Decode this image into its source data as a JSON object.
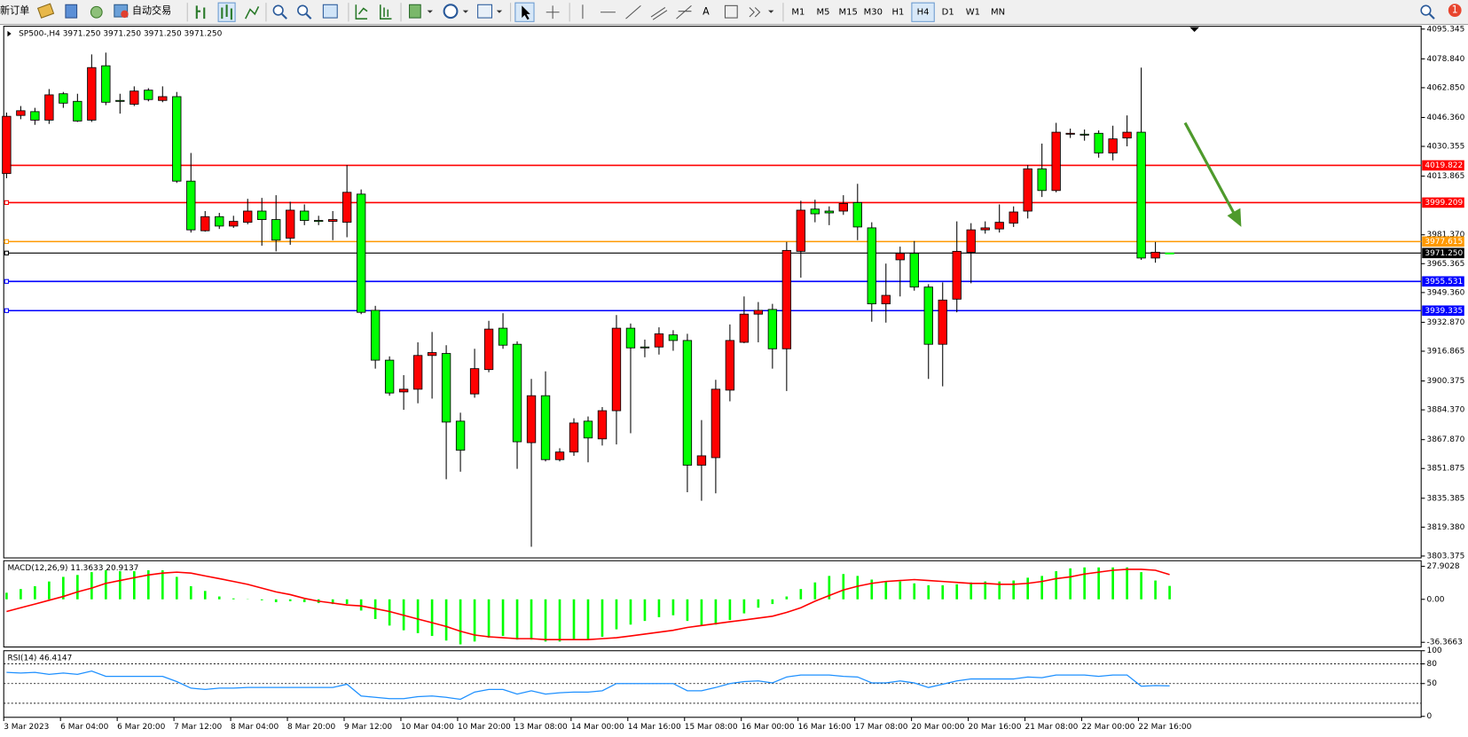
{
  "toolbar": {
    "new_order": "新订单",
    "auto_trading": "自动交易",
    "text_tool": "A",
    "timeframes": [
      {
        "label": "M1"
      },
      {
        "label": "M5"
      },
      {
        "label": "M15"
      },
      {
        "label": "M30"
      },
      {
        "label": "H1"
      },
      {
        "label": "H4",
        "active": true
      },
      {
        "label": "D1"
      },
      {
        "label": "W1"
      },
      {
        "label": "MN"
      }
    ],
    "notifications": "1"
  },
  "chart_data": [
    {
      "type": "candlestick",
      "title": "SP500-,H4  3971.250 3971.250 3971.250 3971.250",
      "x": [
        "3 Mar 2023",
        null,
        null,
        null,
        "6 Mar 04:00",
        null,
        null,
        null,
        "6 Mar 20:00",
        null,
        null,
        null,
        "7 Mar 12:00",
        null,
        null,
        null,
        "8 Mar 04:00",
        null,
        null,
        null,
        "8 Mar 20:00",
        null,
        null,
        null,
        "9 Mar 12:00",
        null,
        null,
        null,
        "10 Mar 04:00",
        null,
        null,
        null,
        "10 Mar 20:00",
        null,
        null,
        null,
        "13 Mar 08:00",
        null,
        null,
        null,
        "14 Mar 00:00",
        null,
        null,
        null,
        "14 Mar 16:00",
        null,
        null,
        null,
        "15 Mar 08:00",
        null,
        null,
        null,
        "16 Mar 00:00",
        null,
        null,
        null,
        "16 Mar 16:00",
        null,
        null,
        null,
        "17 Mar 08:00",
        null,
        null,
        null,
        "20 Mar 00:00",
        null,
        null,
        null,
        "20 Mar 16:00",
        null,
        null,
        null,
        "21 Mar 08:00",
        null,
        null,
        null,
        "22 Mar 00:00",
        null,
        null,
        null,
        "22 Mar 16:00",
        null,
        null
      ],
      "open": [
        4015.3,
        4047.5,
        4049.6,
        4044.9,
        4059.5,
        4055.3,
        4044.9,
        4075.0,
        4055.8,
        4053.7,
        4061.5,
        4055.8,
        4057.9,
        4011.1,
        3983.6,
        3991.4,
        3986.2,
        3988.3,
        3994.5,
        3989.8,
        3979.5,
        3994.5,
        3989.3,
        3988.8,
        3988.3,
        4003.9,
        3939.5,
        3911.9,
        3894.3,
        3895.8,
        3914.5,
        3915.6,
        3878.1,
        3893.2,
        3906.7,
        3929.6,
        3920.7,
        3866.2,
        3892.2,
        3856.8,
        3861.0,
        3878.1,
        3868.3,
        3883.9,
        3929.6,
        3919.2,
        3919.2,
        3925.9,
        3922.8,
        3853.7,
        3857.9,
        3895.3,
        3921.8,
        3937.4,
        3940.0,
        3918.2,
        3972.2,
        3995.6,
        3994.5,
        3994.5,
        3999.2,
        3985.2,
        3943.1,
        3967.5,
        3971.1,
        3952.4,
        3920.7,
        3945.7,
        3971.7,
        3984.1,
        3984.6,
        3987.8,
        3994.5,
        4017.9,
        4005.9,
        4037.1,
        4037.1,
        4037.6,
        4026.7,
        4035.0,
        4038.2,
        3968.5,
        3971.25
      ],
      "high": [
        4049.1,
        4052.7,
        4051.7,
        4062.1,
        4060.5,
        4059.5,
        4081.3,
        4082.3,
        4059.5,
        4063.6,
        4062.6,
        4063.6,
        4060.5,
        4026.7,
        3994.5,
        3993.5,
        3991.9,
        4001.3,
        4001.8,
        4003.3,
        3999.7,
        3998.2,
        3991.9,
        3994.5,
        4020.0,
        4006.5,
        3942.0,
        3914.0,
        3903.6,
        3921.8,
        3927.5,
        3920.2,
        3882.8,
        3918.2,
        3933.7,
        3937.9,
        3922.3,
        3901.5,
        3905.7,
        3863.1,
        3879.7,
        3880.7,
        3885.9,
        3936.9,
        3932.2,
        3923.3,
        3930.1,
        3928.5,
        3926.5,
        3878.7,
        3901.0,
        3931.7,
        3947.2,
        3944.1,
        3943.1,
        3977.4,
        4000.2,
        4000.8,
        3997.1,
        4003.3,
        4009.6,
        3988.3,
        3965.4,
        3974.8,
        3977.9,
        3954.0,
        3955.0,
        3988.8,
        3987.8,
        3988.8,
        3998.2,
        3997.1,
        4020.0,
        4031.9,
        4043.4,
        4040.2,
        4039.7,
        4039.2,
        4041.8,
        4047.5,
        4074.0,
        3977.4,
        3971.25
      ],
      "low": [
        4012.7,
        4045.4,
        4042.3,
        4042.8,
        4051.7,
        4043.9,
        4043.9,
        4053.2,
        4048.5,
        4052.7,
        4055.3,
        4054.8,
        4010.1,
        3982.6,
        3983.1,
        3984.6,
        3985.2,
        3987.2,
        3975.3,
        3972.2,
        3975.8,
        3986.7,
        3986.7,
        3978.4,
        3980.0,
        3937.4,
        3907.2,
        3892.2,
        3884.4,
        3888.0,
        3890.6,
        3845.9,
        3850.1,
        3891.1,
        3905.2,
        3918.2,
        3851.7,
        3808.5,
        3855.8,
        3855.8,
        3858.9,
        3855.3,
        3864.6,
        3865.2,
        3871.4,
        3913.5,
        3915.0,
        3917.1,
        3838.7,
        3834.0,
        3838.1,
        3889.1,
        3921.3,
        3921.8,
        3907.2,
        3894.8,
        3957.6,
        3988.3,
        3986.7,
        3992.4,
        3978.4,
        3933.2,
        3932.7,
        3947.2,
        3950.4,
        3901.5,
        3897.4,
        3938.4,
        3954.5,
        3982.0,
        3982.6,
        3985.7,
        3990.4,
        4002.3,
        4004.9,
        4035.0,
        4033.5,
        4024.1,
        4022.6,
        4030.4,
        3967.5,
        3965.9,
        3971.25
      ],
      "close": [
        4047.0,
        4050.1,
        4044.9,
        4058.9,
        4054.3,
        4044.4,
        4074.0,
        4054.8,
        4055.3,
        4061.0,
        4056.3,
        4057.9,
        4011.1,
        3984.1,
        3991.4,
        3986.2,
        3988.8,
        3994.5,
        3989.8,
        3978.4,
        3995.0,
        3989.3,
        3988.8,
        3989.8,
        4004.9,
        3938.4,
        3911.9,
        3893.7,
        3895.8,
        3914.5,
        3916.1,
        3877.6,
        3862.0,
        3907.2,
        3929.1,
        3920.2,
        3866.7,
        3892.2,
        3856.8,
        3861.0,
        3877.1,
        3868.8,
        3883.9,
        3929.6,
        3918.7,
        3918.7,
        3926.5,
        3922.8,
        3853.7,
        3858.9,
        3895.8,
        3922.8,
        3937.4,
        3939.5,
        3918.2,
        3972.7,
        3995.0,
        3993.0,
        3993.5,
        3998.7,
        3985.7,
        3943.1,
        3947.8,
        3971.1,
        3952.4,
        3920.7,
        3945.2,
        3972.2,
        3984.1,
        3985.2,
        3988.3,
        3994.0,
        4017.9,
        4005.9,
        4038.2,
        4037.6,
        4036.8,
        4026.7,
        4034.5,
        4038.2,
        3968.5,
        3971.7,
        3971.25
      ],
      "up_color": "#ff0000",
      "down_color": "#00ff00",
      "ylim": [
        3803.375,
        4095.345
      ],
      "yticks": [
        4095.345,
        {
          "value": 4078.84,
          "label": "4078.840"
        },
        {
          "value": 4062.85,
          "label": "4062.850"
        },
        {
          "value": 4046.36,
          "label": "4046.360"
        },
        4030.355,
        4013.865,
        {
          "value": 3981.37,
          "label": "3981.370"
        },
        3965.365,
        {
          "value": 3949.36,
          "label": "3949.360"
        },
        {
          "value": 3932.87,
          "label": "3932.870"
        },
        3916.865,
        3900.375,
        {
          "value": 3884.37,
          "label": "3884.370"
        },
        {
          "value": 3867.87,
          "label": "3867.870"
        },
        3851.875,
        3835.385,
        {
          "value": 3819.38,
          "label": "3819.380"
        },
        3803.375
      ],
      "hlines": [
        {
          "value": 4019.822,
          "label": "4019.822",
          "color": "#ff0000"
        },
        {
          "value": 3999.209,
          "label": "3999.209",
          "color": "#ff0000"
        },
        {
          "value": 3977.615,
          "label": "3977.615",
          "color": "#ff9900"
        },
        {
          "value": 3971.25,
          "label": "3971.250",
          "color": "#000000"
        },
        {
          "value": 3955.531,
          "label": "3955.531",
          "color": "#0000ff"
        },
        {
          "value": 3939.335,
          "label": "3939.335",
          "color": "#0000ff"
        }
      ]
    },
    {
      "type": "macd",
      "title": "MACD(12,26,9) 11.3633 20.9137",
      "ylim": [
        -36.3663,
        27.9028
      ],
      "yticks": [
        27.9028,
        {
          "value": 0,
          "label": "0.00"
        },
        -36.3663
      ],
      "series": [
        {
          "type": "bar",
          "color": "#00ff00",
          "values": [
            5.6,
            8.7,
            11.1,
            15.1,
            19.0,
            20.6,
            23.0,
            24.6,
            23.8,
            23.8,
            24.6,
            24.6,
            19.0,
            11.1,
            7.1,
            2.4,
            0.8,
            0.2,
            -0.8,
            -2.4,
            -1.6,
            -2.4,
            -3.2,
            -4.0,
            -4.0,
            -9.5,
            -16.7,
            -22.2,
            -26.2,
            -28.6,
            -31.0,
            -34.9,
            -38.1,
            -35.7,
            -32.5,
            -31.0,
            -34.1,
            -34.1,
            -35.7,
            -35.7,
            -34.1,
            -34.1,
            -31.7,
            -25.4,
            -21.4,
            -18.3,
            -15.1,
            -13.5,
            -18.3,
            -22.2,
            -21.4,
            -17.5,
            -11.9,
            -7.1,
            -4.0,
            2.4,
            8.7,
            14.3,
            19.8,
            21.4,
            19.8,
            16.7,
            15.1,
            15.1,
            13.5,
            11.9,
            11.9,
            12.7,
            14.3,
            15.1,
            15.1,
            15.9,
            18.3,
            19.8,
            23.8,
            26.2,
            27.0,
            27.0,
            27.0,
            27.0,
            23.0,
            15.9,
            11.3633
          ]
        },
        {
          "type": "line",
          "color": "#ff0000",
          "values": [
            -10.3,
            -7.1,
            -4.0,
            -0.8,
            2.4,
            6.3,
            9.5,
            13.5,
            15.9,
            18.3,
            20.6,
            22.2,
            23.0,
            22.2,
            19.8,
            17.5,
            15.1,
            12.7,
            9.5,
            6.3,
            4.0,
            0.8,
            -1.6,
            -3.2,
            -4.8,
            -5.6,
            -7.9,
            -10.3,
            -13.5,
            -16.7,
            -19.8,
            -23.0,
            -27.0,
            -30.2,
            -31.7,
            -32.5,
            -33.3,
            -33.3,
            -34.1,
            -34.1,
            -34.1,
            -34.1,
            -33.3,
            -32.5,
            -31.0,
            -29.4,
            -27.8,
            -26.2,
            -23.8,
            -22.2,
            -20.6,
            -19.0,
            -17.5,
            -15.9,
            -14.3,
            -11.1,
            -7.1,
            -1.6,
            3.2,
            7.9,
            11.1,
            13.5,
            15.1,
            15.9,
            16.7,
            15.9,
            15.1,
            14.3,
            13.5,
            13.5,
            12.7,
            12.7,
            13.5,
            15.1,
            17.5,
            19.0,
            21.4,
            23.0,
            24.6,
            25.4,
            25.4,
            24.6,
            20.9137
          ]
        }
      ]
    },
    {
      "type": "line",
      "title": "RSI(14) 46.4147",
      "color": "#1e90ff",
      "ylim": [
        0,
        100
      ],
      "yticks": [
        100,
        80,
        50,
        0
      ],
      "levels": [
        80,
        50,
        20
      ],
      "values": [
        67,
        66,
        67,
        64,
        66,
        64,
        69,
        61,
        61,
        61,
        61,
        61,
        53,
        43,
        41,
        43,
        43,
        44,
        44,
        44,
        44,
        44,
        44,
        44,
        49,
        31,
        29,
        27,
        27,
        30,
        31,
        29,
        26,
        37,
        41,
        41,
        34,
        39,
        34,
        36,
        37,
        37,
        39,
        50,
        50,
        50,
        50,
        50,
        39,
        39,
        44,
        50,
        53,
        54,
        51,
        60,
        63,
        63,
        63,
        61,
        60,
        51,
        51,
        54,
        51,
        44,
        49,
        54,
        57,
        57,
        57,
        57,
        60,
        59,
        63,
        63,
        63,
        61,
        63,
        63,
        46,
        47,
        46.4147
      ]
    }
  ]
}
